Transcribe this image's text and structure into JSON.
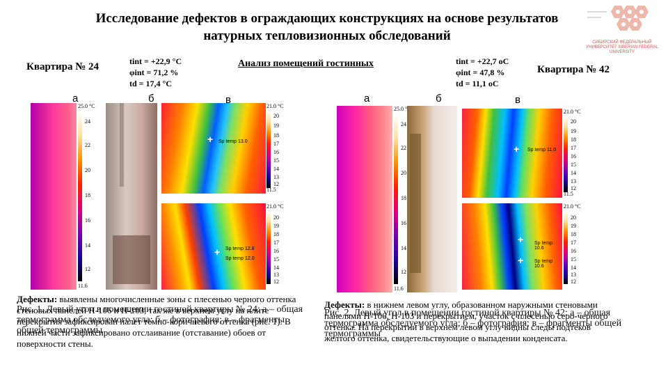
{
  "title_line1": "Исследование дефектов в ограждающих конструкциях на основе результатов",
  "title_line2": "натурных тепловизионных обследований",
  "logo": {
    "text": "СИБИРСКИЙ ФЕДЕРАЛЬНЫЙ УНИВЕРСИТЕТ SIBERIAN FEDERAL UNIVERSITY",
    "color": "#d9534f"
  },
  "left": {
    "apartment": "Квартира № 24",
    "params": [
      "tint = +22,9 °C",
      "φint = 71,2 %",
      "td = 17,4 °C"
    ],
    "labels": {
      "a": "а",
      "b": "б",
      "c": "в"
    },
    "scale_top": {
      "max": "25.0 °C",
      "ticks": [
        "24",
        "22",
        "20",
        "18",
        "16",
        "14",
        "12"
      ],
      "min": "11.6"
    },
    "scale_right1": {
      "max": "21.0 °C",
      "ticks": [
        "20",
        "19",
        "18",
        "17",
        "16",
        "15",
        "14",
        "13",
        "12"
      ],
      "min": "11.5"
    },
    "scale_right2": {
      "max": "21.0 °C",
      "ticks": [
        "20",
        "19",
        "18",
        "17",
        "16",
        "15",
        "14",
        "13",
        "12"
      ],
      "min": "11.5"
    },
    "spots": [
      "Sp temp 13.0",
      "Sp temp 12.8",
      "Sp temp 12.0"
    ],
    "defects_head": "Дефекты:",
    "defects_text": "выявлены многочисленные зоны с плесенью черного оттенка стеновых панелей Н-106 и Н-103, так же в верхнем углу на плите перекрытия зафиксирован налет темно-коричневого оттенка (рис. 1). В нижней части зафиксировано отслаивание (отставание) обоев от поверхности стены.",
    "caption": "Рис. 1. Левый угол в помещении гостиной квартиры № 24: а – общая термограмма обследуемого угла; б – фотография; в – фрагменты общей термограммы"
  },
  "center_heading": "Анализ помещений гостинных",
  "right": {
    "apartment": "Квартира № 42",
    "params": [
      "tint = +22,7 oC",
      "φint = 47,8 %",
      "td = 11,1 oC"
    ],
    "labels": {
      "a": "а",
      "b": "б",
      "c": "в"
    },
    "scale_top": {
      "max": "25.0 °C",
      "ticks": [
        "24",
        "22",
        "20",
        "18",
        "16",
        "14",
        "12"
      ],
      "min": "11.6"
    },
    "scale_right1": {
      "max": "21.0 °C",
      "ticks": [
        "20",
        "19",
        "18",
        "17",
        "16",
        "15",
        "14",
        "13",
        "12"
      ],
      "min": "11.5"
    },
    "scale_right2": {
      "max": "21.0 °C",
      "ticks": [
        "20",
        "19",
        "18",
        "17",
        "16",
        "15",
        "14",
        "13",
        "12"
      ],
      "min": "11.5"
    },
    "spots": [
      "Sp temp 11.0",
      "Sp temp 10.6",
      "Sp temp 10.6"
    ],
    "defects_head": "Дефекты:",
    "defects_text": "в нижнем левом углу, образованном наружными стеновыми панелями Н-106, Н-103 и перекрытием, участок с плесенью серо-черного оттенка. На перекрытии в верхнем левом углу видны следы подтеков желтого оттенка, свидетельствующие о выпадении конденсата.",
    "caption": "Рис. 2. Левый угол в помещении гостиной квартиры № 42: а – общая термограмма обследуемого угла; б – фотография; в – фрагменты общей термограммы"
  }
}
